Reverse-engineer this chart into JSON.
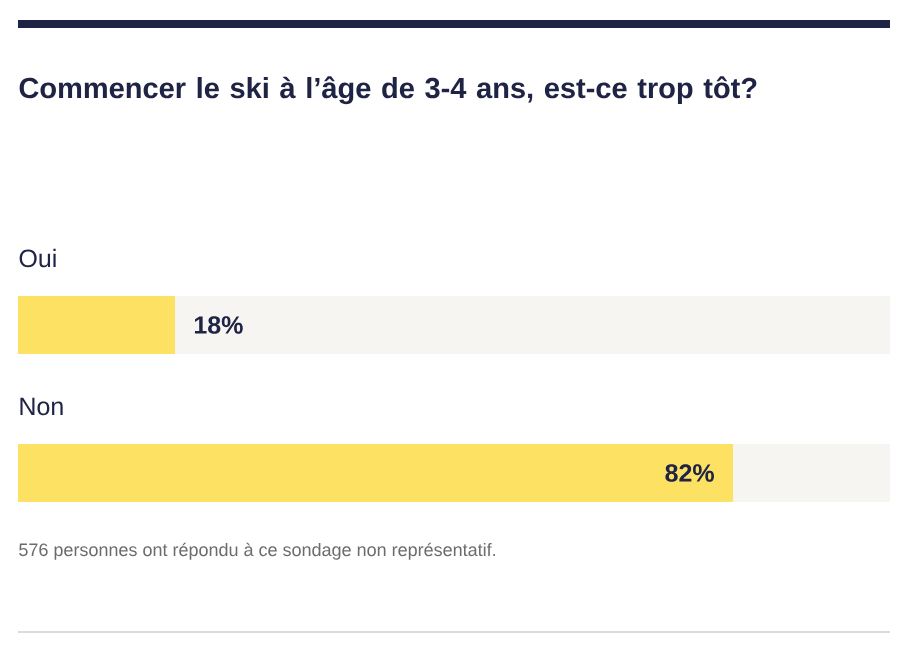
{
  "chart_data": {
    "type": "bar",
    "orientation": "horizontal",
    "title": "Commencer le ski à l’âge de 3-4 ans, est-ce trop tôt?",
    "categories": [
      "Oui",
      "Non"
    ],
    "values": [
      18,
      82
    ],
    "value_labels": [
      "18%",
      "82%"
    ],
    "color": "#fde163",
    "xlim": [
      0,
      100
    ],
    "tick_labels": false,
    "annotations": [
      "576 personnes ont répondu à ce sondage non représentatif."
    ]
  }
}
